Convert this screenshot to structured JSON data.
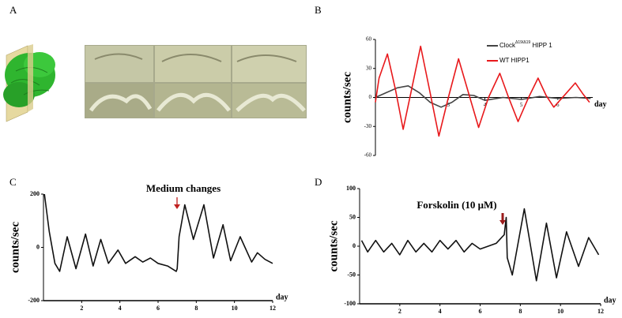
{
  "image_panel": {
    "label": "A"
  },
  "chart_data": [
    {
      "type": "line",
      "panel": "B",
      "ylabel": "counts/sec",
      "xlabel": "day",
      "xlim": [
        1,
        7.5
      ],
      "ylim": [
        -60,
        60
      ],
      "xticks": [
        3,
        4,
        5,
        6
      ],
      "yticks": [
        60,
        30,
        0,
        -30,
        -60
      ],
      "series": [
        {
          "name": "Clock",
          "name_superscript": "Δ19/Δ19",
          "name_suffix": " HIPP 1",
          "color": "#444444",
          "x": [
            1.0,
            1.3,
            1.6,
            1.9,
            2.2,
            2.5,
            2.8,
            3.1,
            3.4,
            3.7,
            4.0,
            4.5,
            5.0,
            5.5,
            6.0,
            6.5,
            6.9
          ],
          "values": [
            0,
            5,
            10,
            12,
            5,
            -5,
            -10,
            -5,
            3,
            2,
            -3,
            0,
            -2,
            1,
            -1,
            0,
            -1
          ]
        },
        {
          "name": "WT HIPP1",
          "color": "#e8191c",
          "x": [
            1.0,
            1.1,
            1.33,
            1.55,
            1.76,
            2.0,
            2.24,
            2.5,
            2.74,
            3.0,
            3.28,
            3.55,
            3.83,
            4.1,
            4.41,
            4.65,
            4.91,
            5.2,
            5.46,
            5.68,
            5.89,
            6.2,
            6.48,
            6.7,
            6.87
          ],
          "values": [
            -5,
            20,
            45,
            8,
            -33,
            10,
            53,
            5,
            -40,
            0,
            40,
            5,
            -31,
            0,
            25,
            0,
            -25,
            0,
            20,
            2,
            -10,
            3,
            15,
            3,
            -5
          ]
        }
      ]
    },
    {
      "type": "line",
      "panel": "C",
      "ylabel": "counts/sec",
      "xlabel": "day",
      "annotation": "Medium changes",
      "xlim": [
        0,
        12
      ],
      "ylim": [
        -200,
        200
      ],
      "xticks": [
        2,
        4,
        6,
        8,
        10,
        12
      ],
      "yticks": [
        200,
        0,
        -200
      ],
      "series": [
        {
          "color": "#111111",
          "x": [
            0.05,
            0.3,
            0.6,
            0.85,
            1.24,
            1.7,
            2.2,
            2.6,
            3.0,
            3.4,
            3.9,
            4.3,
            4.8,
            5.2,
            5.6,
            6.0,
            6.5,
            6.95,
            7.0,
            7.1,
            7.4,
            7.85,
            8.4,
            8.9,
            9.4,
            9.8,
            10.3,
            10.9,
            11.2,
            11.6,
            12
          ],
          "values": [
            200,
            60,
            -60,
            -90,
            40,
            -80,
            50,
            -70,
            30,
            -60,
            -10,
            -60,
            -35,
            -55,
            -40,
            -60,
            -70,
            -90,
            -80,
            40,
            160,
            30,
            160,
            -40,
            85,
            -50,
            40,
            -55,
            -20,
            -45,
            -60
          ]
        }
      ]
    },
    {
      "type": "line",
      "panel": "D",
      "ylabel": "counts/sec",
      "xlabel": "day",
      "annotation": "Forskolin (10 μM)",
      "xlim": [
        0,
        12
      ],
      "ylim": [
        -100,
        100
      ],
      "xticks": [
        2,
        4,
        6,
        8,
        10,
        12
      ],
      "yticks": [
        100,
        50,
        0,
        -50,
        -100
      ],
      "series": [
        {
          "color": "#111111",
          "x": [
            0.1,
            0.4,
            0.8,
            1.2,
            1.6,
            2.0,
            2.4,
            2.8,
            3.2,
            3.6,
            4.0,
            4.4,
            4.8,
            5.2,
            5.6,
            6.0,
            6.4,
            6.8,
            7.2,
            7.3,
            7.35,
            7.6,
            8.2,
            8.8,
            9.3,
            9.8,
            10.3,
            10.9,
            11.4,
            11.9
          ],
          "values": [
            10,
            -10,
            10,
            -10,
            5,
            -15,
            10,
            -10,
            5,
            -10,
            10,
            -5,
            10,
            -10,
            5,
            -5,
            0,
            5,
            20,
            50,
            -20,
            -50,
            65,
            -60,
            40,
            -55,
            25,
            -35,
            15,
            -15
          ]
        }
      ]
    }
  ]
}
